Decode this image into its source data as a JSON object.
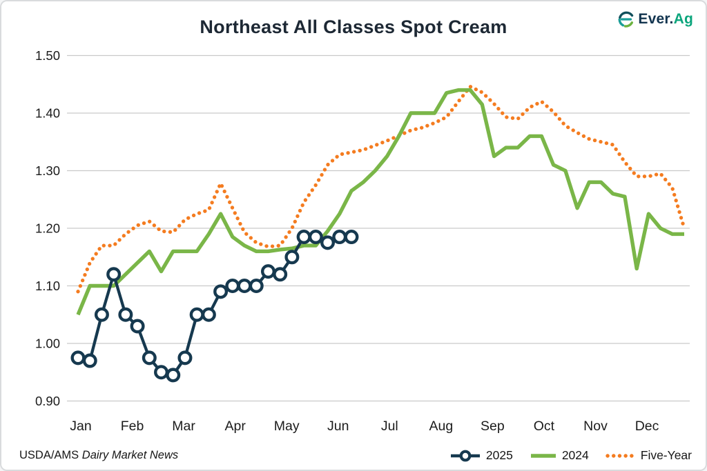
{
  "title": "Northeast All Classes Spot Cream",
  "logo": {
    "text_primary": "Ever.",
    "text_accent": "Ag",
    "navy": "#12344f",
    "teal": "#1b9e98",
    "green": "#6cb33f",
    "accent": "#0ba57c"
  },
  "source": {
    "prefix": "USDA/AMS",
    "name": "Dairy Market News"
  },
  "chart_data": {
    "type": "line",
    "title": "Northeast All Classes Spot Cream",
    "x_unit": "weekly",
    "xlabel": "",
    "ylabel": "",
    "ylim": [
      0.9,
      1.5
    ],
    "grid": "horizontal",
    "legend_position": "bottom-right",
    "x_labels": [
      "Jan",
      "Feb",
      "Mar",
      "Apr",
      "May",
      "Jun",
      "Jul",
      "Aug",
      "Sep",
      "Oct",
      "Nov",
      "Dec"
    ],
    "y_ticks": [
      {
        "label": "1.50",
        "value": 1.5
      },
      {
        "label": "1.40",
        "value": 1.4
      },
      {
        "label": "1.30",
        "value": 1.3
      },
      {
        "label": "1.20",
        "value": 1.2
      },
      {
        "label": "1.10",
        "value": 1.1
      },
      {
        "label": "1.00",
        "value": 1.0
      },
      {
        "label": "0.90",
        "value": 0.9
      }
    ],
    "series": [
      {
        "name": "Five-Year",
        "style": "dotted",
        "color": "#f47c20",
        "values": [
          1.09,
          1.14,
          1.17,
          1.17,
          1.19,
          1.205,
          1.212,
          1.195,
          1.193,
          1.215,
          1.225,
          1.232,
          1.278,
          1.235,
          1.193,
          1.175,
          1.168,
          1.17,
          1.2,
          1.245,
          1.275,
          1.31,
          1.328,
          1.332,
          1.336,
          1.344,
          1.352,
          1.361,
          1.37,
          1.375,
          1.383,
          1.393,
          1.42,
          1.446,
          1.436,
          1.416,
          1.393,
          1.39,
          1.41,
          1.42,
          1.402,
          1.378,
          1.366,
          1.355,
          1.35,
          1.345,
          1.315,
          1.29,
          1.29,
          1.295,
          1.27,
          1.2
        ]
      },
      {
        "name": "2024",
        "style": "solid",
        "color": "#7ab648",
        "values": [
          1.05,
          1.1,
          1.1,
          1.1,
          1.12,
          1.14,
          1.16,
          1.125,
          1.16,
          1.16,
          1.16,
          1.19,
          1.225,
          1.185,
          1.17,
          1.16,
          1.16,
          1.163,
          1.165,
          1.17,
          1.17,
          1.195,
          1.225,
          1.265,
          1.28,
          1.3,
          1.325,
          1.36,
          1.4,
          1.4,
          1.4,
          1.435,
          1.44,
          1.44,
          1.415,
          1.325,
          1.34,
          1.34,
          1.36,
          1.36,
          1.31,
          1.3,
          1.235,
          1.28,
          1.28,
          1.26,
          1.255,
          1.13,
          1.225,
          1.2,
          1.19,
          1.19
        ]
      },
      {
        "name": "2025",
        "style": "solid-markers",
        "color": "#16394f",
        "values": [
          0.975,
          0.97,
          1.05,
          1.12,
          1.05,
          1.03,
          0.975,
          0.95,
          0.945,
          0.975,
          1.05,
          1.05,
          1.09,
          1.1,
          1.1,
          1.1,
          1.125,
          1.12,
          1.15,
          1.185,
          1.185,
          1.175,
          1.185,
          1.185
        ]
      }
    ]
  }
}
